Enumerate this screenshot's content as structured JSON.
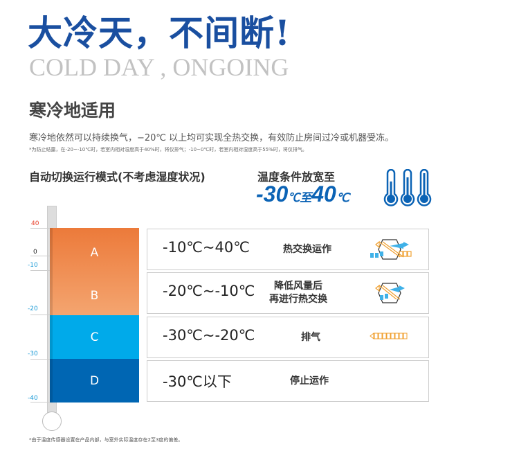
{
  "header": {
    "title": "大冷天，不间断!",
    "subtitle": "COLD DAY , ONGOING"
  },
  "section": {
    "heading": "寒冷地适用",
    "description": "寒冷地依然可以持续换气，−20℃ 以上均可实现全热交换，有效防止房间过冷或机器受冻。",
    "note": "*为防止结露，在-20~-10℃时，若室内相对湿度高于40%时，将仅排气；-10~0℃时，若室内相对湿度高于55%时，将仅排气。"
  },
  "mode_title": "自动切换运行模式(不考虑湿度状况)",
  "range": {
    "label": "温度条件放宽至",
    "low": "-30",
    "unit": "℃",
    "mid": "至",
    "high": "40"
  },
  "scale": {
    "ticks": [
      "40",
      "0",
      "-10",
      "-20",
      "-30",
      "-40"
    ],
    "tick_colors": [
      "#e8412c",
      "#222222",
      "#1a9ad6",
      "#1a9ad6",
      "#1a9ad6",
      "#1a9ad6"
    ]
  },
  "zones": [
    {
      "letter": "A",
      "temp": "-10℃~40℃",
      "desc": "热交换运作",
      "icon": "heat-exchange-icon",
      "color": "#ee7d3d"
    },
    {
      "letter": "B",
      "temp": "-20℃~-10℃",
      "desc": "降低风量后\n再进行热交换",
      "icon": "heat-exchange-icon",
      "color": "#f3a06c"
    },
    {
      "letter": "C",
      "temp": "-30℃~-20℃",
      "desc": "排气",
      "icon": "exhaust-arrow-icon",
      "color": "#00aaea"
    },
    {
      "letter": "D",
      "temp": "-30℃以下",
      "desc": "停止运作",
      "icon": "",
      "color": "#0066b3"
    }
  ],
  "footnote": "*由于温度传感器设置在产品内部，与室外实际温度存在2至3度的偏差。"
}
